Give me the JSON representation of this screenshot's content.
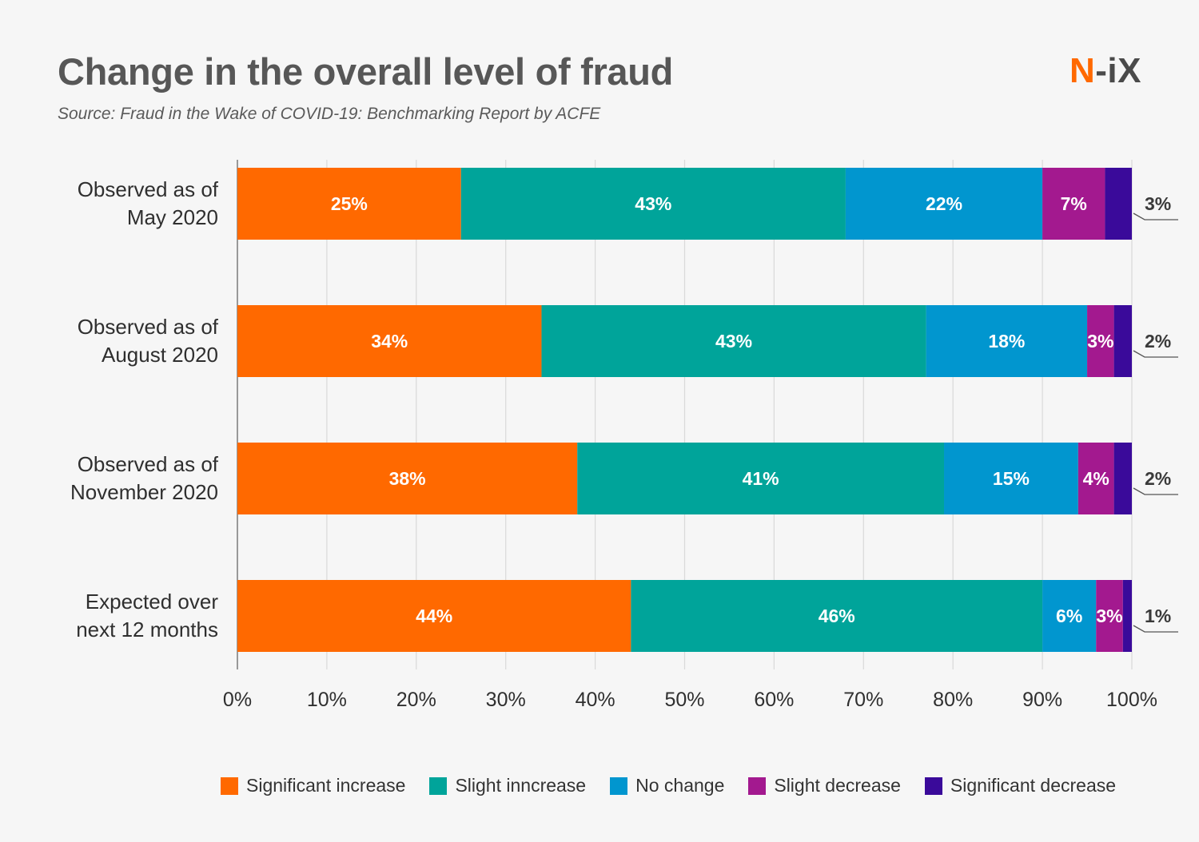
{
  "header": {
    "title": "Change in the overall level of fraud",
    "subtitle": "Source:  Fraud in the Wake of COVID-19: Benchmarking Report by ACFE",
    "logo_n": "N",
    "logo_rest": "-iX"
  },
  "colors": {
    "background": "#f6f6f6",
    "grid": "#d9d9d9",
    "axis": "#7a7a7a",
    "brand_orange": "#ff6900"
  },
  "chart_data": {
    "type": "bar",
    "orientation": "horizontal",
    "stacked": true,
    "categories": [
      [
        "Observed as of",
        "May 2020"
      ],
      [
        "Observed as of",
        "August 2020"
      ],
      [
        "Observed as of",
        "November 2020"
      ],
      [
        "Expected over",
        "next 12 months"
      ]
    ],
    "series": [
      {
        "name": "Significant increase",
        "color": "#ff6900",
        "values": [
          25,
          34,
          38,
          44
        ]
      },
      {
        "name": "Slight inncrease",
        "color": "#00a49a",
        "values": [
          43,
          43,
          41,
          46
        ]
      },
      {
        "name": "No change",
        "color": "#0196cf",
        "values": [
          22,
          18,
          15,
          6
        ]
      },
      {
        "name": "Slight decrease",
        "color": "#a3198f",
        "values": [
          7,
          3,
          4,
          3
        ]
      },
      {
        "name": "Significant decrease",
        "color": "#3a0a9a",
        "values": [
          3,
          2,
          2,
          1
        ]
      }
    ],
    "bar_label_values": [
      [
        25,
        43,
        22,
        7,
        3
      ],
      [
        34,
        43,
        18,
        3,
        2
      ],
      [
        38,
        41,
        15,
        4,
        2
      ],
      [
        44,
        46,
        6,
        3,
        1
      ]
    ],
    "x_ticks": [
      "0%",
      "10%",
      "20%",
      "30%",
      "40%",
      "50%",
      "60%",
      "70%",
      "80%",
      "90%",
      "100%"
    ],
    "xlim": [
      0,
      100
    ],
    "grid": true,
    "legend_position": "bottom"
  }
}
